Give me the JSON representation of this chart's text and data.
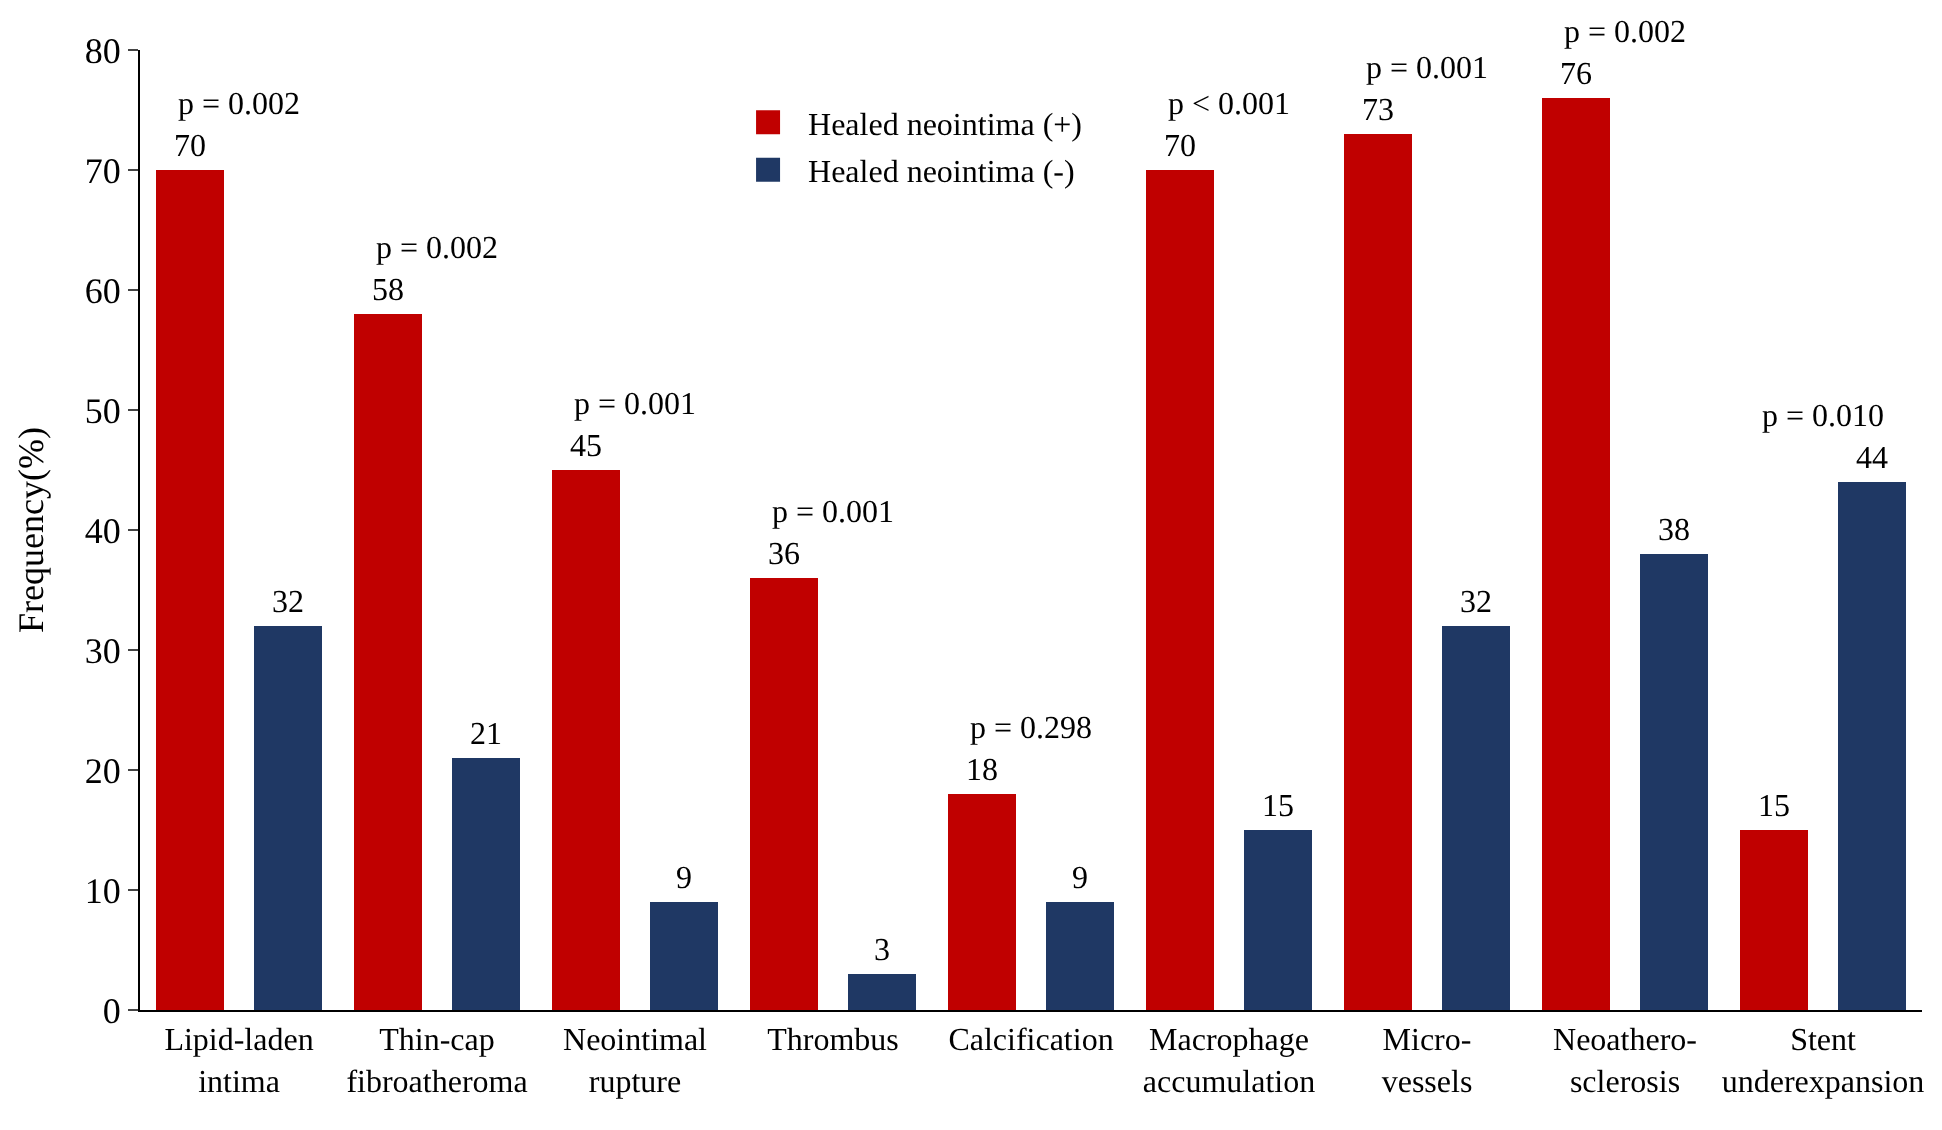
{
  "chart_data": {
    "type": "bar",
    "ylabel": "Frequency(%)",
    "categories": [
      "Lipid-laden\nintima",
      "Thin-cap\nfibroatheroma",
      "Neointimal\nrupture",
      "Thrombus",
      "Calcification",
      "Macrophage\naccumulation",
      "Micro-\nvessels",
      "Neoathero-\nsclerosis",
      "Stent\nunderexpansion"
    ],
    "series": [
      {
        "name": "Healed neointima (+)",
        "color": "#c00000",
        "values": [
          70,
          58,
          45,
          36,
          18,
          70,
          73,
          76,
          15
        ]
      },
      {
        "name": "Healed neointima (-)",
        "color": "#1f3864",
        "values": [
          32,
          21,
          9,
          3,
          9,
          15,
          32,
          38,
          44
        ]
      }
    ],
    "ylim": [
      0,
      80
    ],
    "yticks": [
      0,
      10,
      20,
      30,
      40,
      50,
      60,
      70,
      80
    ],
    "legend": "top",
    "data_labels": true,
    "annotations": [
      "p = 0.002",
      "p = 0.002",
      "p = 0.001",
      "p = 0.001",
      "p = 0.298",
      "p < 0.001",
      "p = 0.001",
      "p = 0.002",
      "p = 0.010"
    ]
  }
}
